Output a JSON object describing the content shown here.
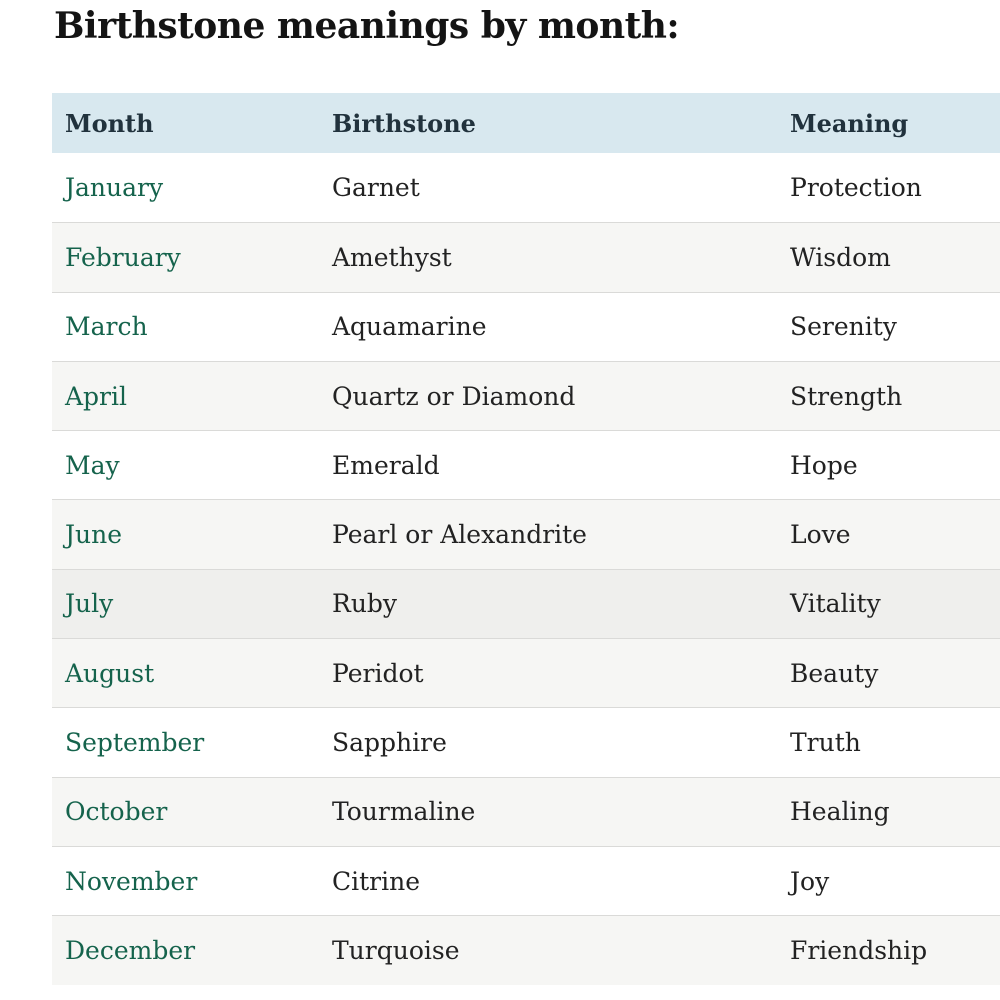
{
  "page": {
    "title": "Birthstone meanings by month:"
  },
  "chart_data": {
    "type": "table",
    "title": "Birthstone meanings by month:",
    "columns": [
      "Month",
      "Birthstone",
      "Meaning"
    ],
    "rows": [
      [
        "January",
        "Garnet",
        "Protection"
      ],
      [
        "February",
        "Amethyst",
        "Wisdom"
      ],
      [
        "March",
        "Aquamarine",
        "Serenity"
      ],
      [
        "April",
        "Quartz or Diamond",
        "Strength"
      ],
      [
        "May",
        "Emerald",
        "Hope"
      ],
      [
        "June",
        "Pearl or Alexandrite",
        "Love"
      ],
      [
        "July",
        "Ruby",
        "Vitality"
      ],
      [
        "August",
        "Peridot",
        "Beauty"
      ],
      [
        "September",
        "Sapphire",
        "Truth"
      ],
      [
        "October",
        "Tourmaline",
        "Healing"
      ],
      [
        "November",
        "Citrine",
        "Joy"
      ],
      [
        "December",
        "Turquoise",
        "Friendship"
      ]
    ],
    "layout_hints": {
      "header_row_shaded": true,
      "alternating_row_shading": true,
      "highlighted_row": "July",
      "month_column_is_link_styled": true
    }
  },
  "colors": {
    "header_row_bg": "#d8e8ef",
    "month_link_text": "#15634c",
    "alt_row_bg": "#f6f6f4",
    "highlighted_row_bg": "#efefed",
    "row_divider": "#dadad8",
    "header_text": "#21323d",
    "body_text": "#222222",
    "title_text": "#141414"
  }
}
